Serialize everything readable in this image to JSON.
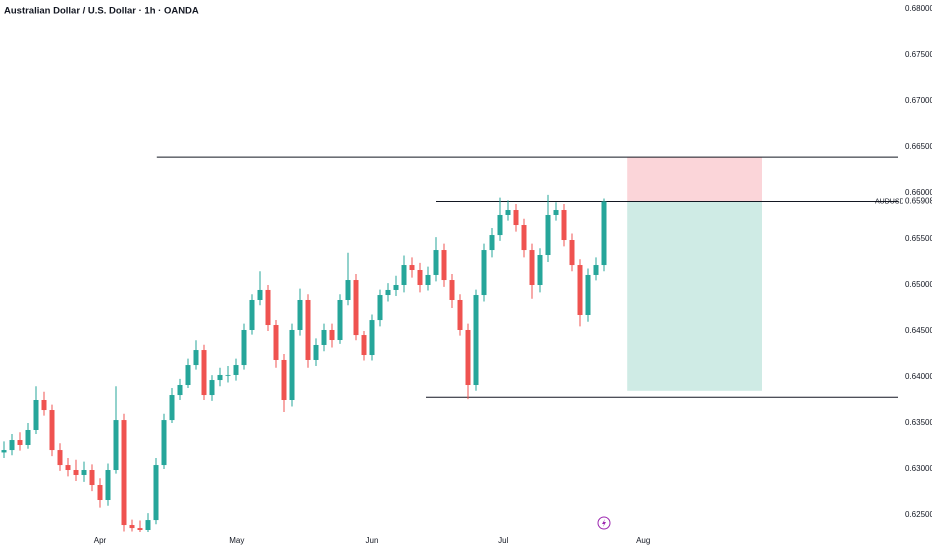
{
  "chart_data": {
    "type": "candlestick",
    "title": "Australian Dollar / U.S. Dollar · 1h · OANDA",
    "symbol": "AUDUSD",
    "up_color": "#26a69a",
    "down_color": "#ef5350",
    "xlim": [
      -0.5,
      111.75
    ],
    "xticks": [
      {
        "value": 12,
        "label": "Apr"
      },
      {
        "value": 29.1,
        "label": "May"
      },
      {
        "value": 46,
        "label": "Jun"
      },
      {
        "value": 62.4,
        "label": "Jul"
      },
      {
        "value": 79.9,
        "label": "Aug"
      }
    ],
    "ylim": [
      0.625,
      0.68
    ],
    "yticks": [
      {
        "value": 0.625,
        "label": "0.62500"
      },
      {
        "value": 0.63,
        "label": "0.63000"
      },
      {
        "value": 0.635,
        "label": "0.63500"
      },
      {
        "value": 0.64,
        "label": "0.64000"
      },
      {
        "value": 0.645,
        "label": "0.64500"
      },
      {
        "value": 0.65,
        "label": "0.65000"
      },
      {
        "value": 0.655,
        "label": "0.65500"
      },
      {
        "value": 0.66,
        "label": "0.66000"
      },
      {
        "value": 0.665,
        "label": "0.66500"
      },
      {
        "value": 0.67,
        "label": "0.67000"
      },
      {
        "value": 0.675,
        "label": "0.67500"
      },
      {
        "value": 0.68,
        "label": "0.68000"
      }
    ],
    "ohlc": [
      [
        0.6318,
        0.633,
        0.6312,
        0.63206
      ],
      [
        0.63206,
        0.6338,
        0.6315,
        0.63315
      ],
      [
        0.63315,
        0.634,
        0.632,
        0.63261
      ],
      [
        0.63261,
        0.635,
        0.6322,
        0.63424
      ],
      [
        0.63424,
        0.639,
        0.6338,
        0.6375
      ],
      [
        0.6375,
        0.6384,
        0.6358,
        0.63641
      ],
      [
        0.63641,
        0.637,
        0.6314,
        0.63206
      ],
      [
        0.63206,
        0.6328,
        0.6298,
        0.63043
      ],
      [
        0.63043,
        0.6312,
        0.6292,
        0.62989
      ],
      [
        0.62989,
        0.631,
        0.6287,
        0.62935
      ],
      [
        0.62935,
        0.6308,
        0.6286,
        0.62989
      ],
      [
        0.62989,
        0.6305,
        0.6276,
        0.62826
      ],
      [
        0.62826,
        0.629,
        0.6258,
        0.62663
      ],
      [
        0.62663,
        0.6306,
        0.626,
        0.62989
      ],
      [
        0.62989,
        0.639,
        0.6295,
        0.63532
      ],
      [
        0.63532,
        0.636,
        0.6232,
        0.62391
      ],
      [
        0.62391,
        0.6245,
        0.6232,
        0.62358
      ],
      [
        0.62358,
        0.6244,
        0.623,
        0.62337
      ],
      [
        0.62337,
        0.6252,
        0.623,
        0.62445
      ],
      [
        0.62445,
        0.6312,
        0.624,
        0.63043
      ],
      [
        0.63043,
        0.636,
        0.63,
        0.63532
      ],
      [
        0.63532,
        0.6388,
        0.635,
        0.63804
      ],
      [
        0.63804,
        0.6398,
        0.6375,
        0.63913
      ],
      [
        0.63913,
        0.642,
        0.6388,
        0.6413
      ],
      [
        0.6413,
        0.644,
        0.6408,
        0.64293
      ],
      [
        0.64293,
        0.6435,
        0.6375,
        0.63804
      ],
      [
        0.63804,
        0.6402,
        0.6374,
        0.63967
      ],
      [
        0.63967,
        0.641,
        0.639,
        0.64022
      ],
      [
        0.64022,
        0.6412,
        0.6394,
        0.64022
      ],
      [
        0.64022,
        0.642,
        0.6396,
        0.6413
      ],
      [
        0.6413,
        0.6458,
        0.6408,
        0.64511
      ],
      [
        0.64511,
        0.649,
        0.6446,
        0.64837
      ],
      [
        0.64837,
        0.6515,
        0.6478,
        0.64946
      ],
      [
        0.64946,
        0.65,
        0.645,
        0.64565
      ],
      [
        0.64565,
        0.6462,
        0.641,
        0.64185
      ],
      [
        0.64185,
        0.6425,
        0.6362,
        0.6375
      ],
      [
        0.6375,
        0.6458,
        0.6368,
        0.64511
      ],
      [
        0.64511,
        0.6496,
        0.6445,
        0.64837
      ],
      [
        0.64837,
        0.649,
        0.641,
        0.64185
      ],
      [
        0.64185,
        0.6442,
        0.6412,
        0.64348
      ],
      [
        0.64348,
        0.6458,
        0.6428,
        0.64511
      ],
      [
        0.64511,
        0.6458,
        0.6432,
        0.64402
      ],
      [
        0.64402,
        0.649,
        0.6436,
        0.64837
      ],
      [
        0.64837,
        0.6535,
        0.6478,
        0.65054
      ],
      [
        0.65054,
        0.6512,
        0.644,
        0.64456
      ],
      [
        0.64456,
        0.645,
        0.6418,
        0.64239
      ],
      [
        0.64239,
        0.6468,
        0.6418,
        0.64619
      ],
      [
        0.64619,
        0.6495,
        0.6455,
        0.64891
      ],
      [
        0.64891,
        0.6502,
        0.6482,
        0.64946
      ],
      [
        0.64946,
        0.651,
        0.6488,
        0.65
      ],
      [
        0.65,
        0.6532,
        0.6492,
        0.65217
      ],
      [
        0.65217,
        0.653,
        0.6508,
        0.65163
      ],
      [
        0.65163,
        0.6524,
        0.6492,
        0.65
      ],
      [
        0.65,
        0.652,
        0.6494,
        0.65109
      ],
      [
        0.65109,
        0.6552,
        0.6504,
        0.6538
      ],
      [
        0.6538,
        0.6545,
        0.6498,
        0.65054
      ],
      [
        0.65054,
        0.6512,
        0.6475,
        0.64837
      ],
      [
        0.64837,
        0.649,
        0.6445,
        0.64511
      ],
      [
        0.64511,
        0.6458,
        0.6376,
        0.63913
      ],
      [
        0.63913,
        0.6495,
        0.6385,
        0.64891
      ],
      [
        0.64891,
        0.6545,
        0.6482,
        0.6538
      ],
      [
        0.6538,
        0.6562,
        0.653,
        0.65543
      ],
      [
        0.65543,
        0.6595,
        0.6548,
        0.65761
      ],
      [
        0.65761,
        0.6592,
        0.657,
        0.65815
      ],
      [
        0.65815,
        0.6588,
        0.6558,
        0.65652
      ],
      [
        0.65652,
        0.6572,
        0.653,
        0.6538
      ],
      [
        0.6538,
        0.6545,
        0.6485,
        0.65
      ],
      [
        0.65,
        0.654,
        0.6492,
        0.65326
      ],
      [
        0.65326,
        0.6598,
        0.6525,
        0.65761
      ],
      [
        0.65761,
        0.659,
        0.657,
        0.65815
      ],
      [
        0.65815,
        0.6588,
        0.6542,
        0.65489
      ],
      [
        0.65489,
        0.6556,
        0.6515,
        0.65217
      ],
      [
        0.65217,
        0.6528,
        0.6455,
        0.64674
      ],
      [
        0.64674,
        0.6518,
        0.646,
        0.65109
      ],
      [
        0.65109,
        0.653,
        0.6505,
        0.65217
      ],
      [
        0.65217,
        0.6594,
        0.6515,
        0.65908
      ]
    ],
    "hlines": [
      {
        "value": 0.6639,
        "from": 19.1
      },
      {
        "value": 0.65908,
        "from": 54
      },
      {
        "value": 0.6378,
        "from": 52.75
      }
    ],
    "position": {
      "stop": 0.6639,
      "entry": 0.65908,
      "target": 0.6385,
      "from": 77.9,
      "to": 94.75
    }
  }
}
